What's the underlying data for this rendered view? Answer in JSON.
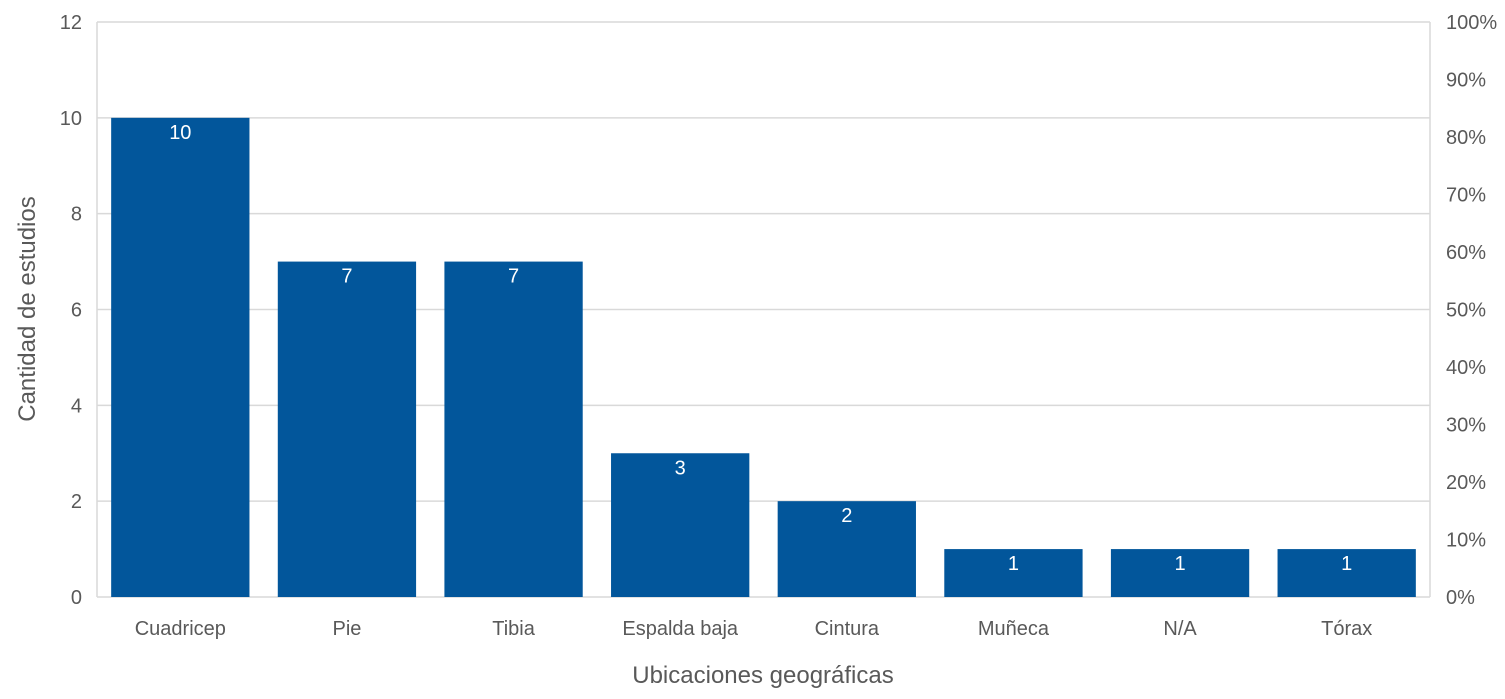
{
  "chart_data": {
    "type": "bar",
    "title": "",
    "xlabel": "Ubicaciones geográficas",
    "ylabel": "Cantidad de estudios",
    "categories": [
      "Cuadricep",
      "Pie",
      "Tibia",
      "Espalda baja",
      "Cintura",
      "Muñeca",
      "N/A",
      "Tórax"
    ],
    "values": [
      10,
      7,
      7,
      3,
      2,
      1,
      1,
      1
    ],
    "data_labels": [
      "10",
      "7",
      "7",
      "3",
      "2",
      "1",
      "1",
      "1"
    ],
    "ylim": [
      0,
      12
    ],
    "y_ticks": [
      "0",
      "2",
      "4",
      "6",
      "8",
      "10",
      "12"
    ],
    "y2_ticks": [
      "0%",
      "10%",
      "20%",
      "30%",
      "40%",
      "50%",
      "60%",
      "70%",
      "80%",
      "90%",
      "100%"
    ],
    "grid": true,
    "legend": "none",
    "bar_color": "#02569b",
    "grid_color": "#d9d9d9",
    "text_color": "#595959"
  }
}
